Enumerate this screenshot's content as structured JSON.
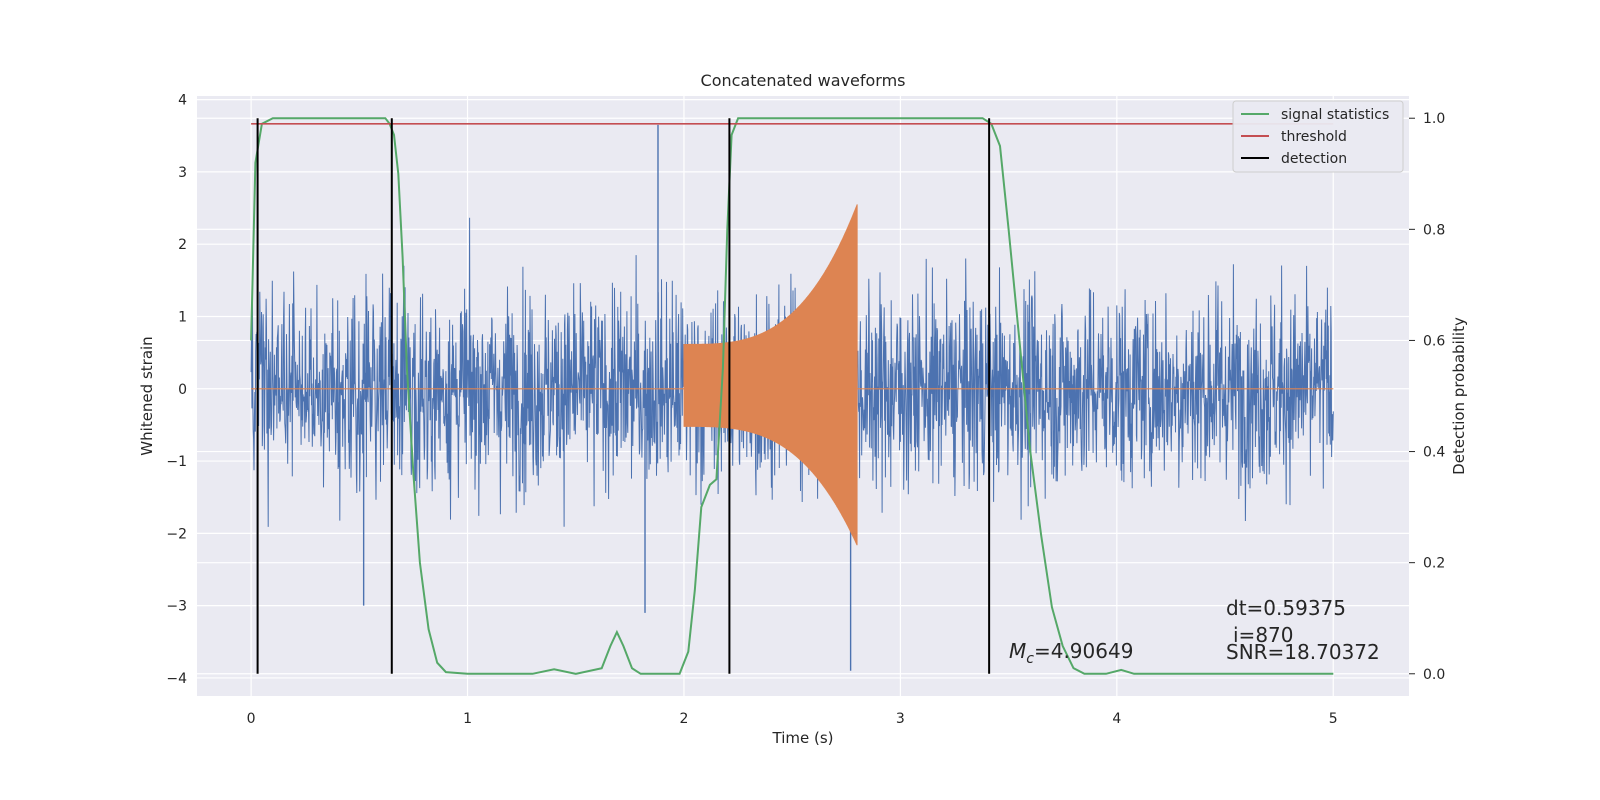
{
  "chart_data": {
    "type": "line",
    "title": "Concatenated waveforms",
    "xlabel": "Time (s)",
    "ylabel_left": "Whitened strain",
    "ylabel_right": "Detection probability",
    "xlim": [
      -0.25,
      5.35
    ],
    "ylim_left": [
      -4.25,
      4.05
    ],
    "ylim_right": [
      -0.04,
      1.04
    ],
    "xticks": [
      0,
      1,
      2,
      3,
      4,
      5
    ],
    "yticks_left": [
      -4,
      -3,
      -2,
      -1,
      0,
      1,
      2,
      3,
      4
    ],
    "yticks_right": [
      0.0,
      0.2,
      0.4,
      0.6,
      0.8,
      1.0
    ],
    "grid": true,
    "background": "#eaeaf2",
    "legend": {
      "position": "top-right",
      "entries": [
        {
          "label": "signal statistics",
          "color": "#55a868"
        },
        {
          "label": "threshold",
          "color": "#c44e52"
        },
        {
          "label": "detection",
          "color": "#000000"
        }
      ]
    },
    "series": [
      {
        "name": "signal statistics",
        "axis": "right",
        "color": "#55a868",
        "points": [
          [
            0.0,
            0.6
          ],
          [
            0.02,
            0.92
          ],
          [
            0.05,
            0.99
          ],
          [
            0.1,
            1.0
          ],
          [
            0.3,
            1.0
          ],
          [
            0.5,
            1.0
          ],
          [
            0.62,
            1.0
          ],
          [
            0.64,
            0.99
          ],
          [
            0.66,
            0.97
          ],
          [
            0.68,
            0.9
          ],
          [
            0.7,
            0.75
          ],
          [
            0.72,
            0.55
          ],
          [
            0.75,
            0.36
          ],
          [
            0.78,
            0.2
          ],
          [
            0.82,
            0.08
          ],
          [
            0.86,
            0.02
          ],
          [
            0.9,
            0.003
          ],
          [
            1.0,
            0.0
          ],
          [
            1.3,
            0.0
          ],
          [
            1.4,
            0.008
          ],
          [
            1.5,
            0.0
          ],
          [
            1.62,
            0.01
          ],
          [
            1.66,
            0.05
          ],
          [
            1.69,
            0.075
          ],
          [
            1.72,
            0.05
          ],
          [
            1.76,
            0.01
          ],
          [
            1.8,
            0.0
          ],
          [
            1.98,
            0.0
          ],
          [
            2.02,
            0.04
          ],
          [
            2.05,
            0.15
          ],
          [
            2.08,
            0.3
          ],
          [
            2.12,
            0.34
          ],
          [
            2.15,
            0.35
          ],
          [
            2.18,
            0.55
          ],
          [
            2.2,
            0.8
          ],
          [
            2.22,
            0.97
          ],
          [
            2.25,
            1.0
          ],
          [
            2.5,
            1.0
          ],
          [
            3.0,
            1.0
          ],
          [
            3.38,
            1.0
          ],
          [
            3.42,
            0.99
          ],
          [
            3.46,
            0.95
          ],
          [
            3.5,
            0.8
          ],
          [
            3.55,
            0.6
          ],
          [
            3.6,
            0.4
          ],
          [
            3.65,
            0.25
          ],
          [
            3.7,
            0.12
          ],
          [
            3.75,
            0.05
          ],
          [
            3.8,
            0.01
          ],
          [
            3.85,
            0.0
          ],
          [
            3.95,
            0.0
          ],
          [
            4.02,
            0.007
          ],
          [
            4.08,
            0.0
          ],
          [
            4.5,
            0.0
          ],
          [
            5.0,
            0.0
          ]
        ]
      },
      {
        "name": "threshold",
        "axis": "right",
        "color": "#c44e52",
        "points": [
          [
            0.0,
            0.99
          ],
          [
            5.0,
            0.99
          ]
        ]
      },
      {
        "name": "detection",
        "axis": "right",
        "color": "#000000",
        "type": "vlines",
        "x": [
          0.03,
          0.65,
          2.21,
          3.41
        ],
        "ymin": 0.0,
        "ymax": 1.0
      },
      {
        "axis": "left",
        "color": "#4c72b0",
        "type": "noise",
        "x_range": [
          0.0,
          5.0
        ],
        "amplitude": 1.0,
        "extremes": [
          -3.9,
          3.65
        ]
      },
      {
        "axis": "left",
        "color": "#dd8452",
        "type": "chirp",
        "x_range": [
          0.0,
          5.0
        ],
        "active_range": [
          2.0,
          2.8
        ],
        "amplitude_start": 0.62,
        "amplitude_end": 2.55
      }
    ],
    "annotations": [
      {
        "text_prefix": "M",
        "text_sub": "c",
        "text_suffix": "=4.90649"
      },
      {
        "text": "dt=0.59375"
      },
      {
        "text": "i=870"
      },
      {
        "text": "SNR=18.70372"
      }
    ]
  }
}
